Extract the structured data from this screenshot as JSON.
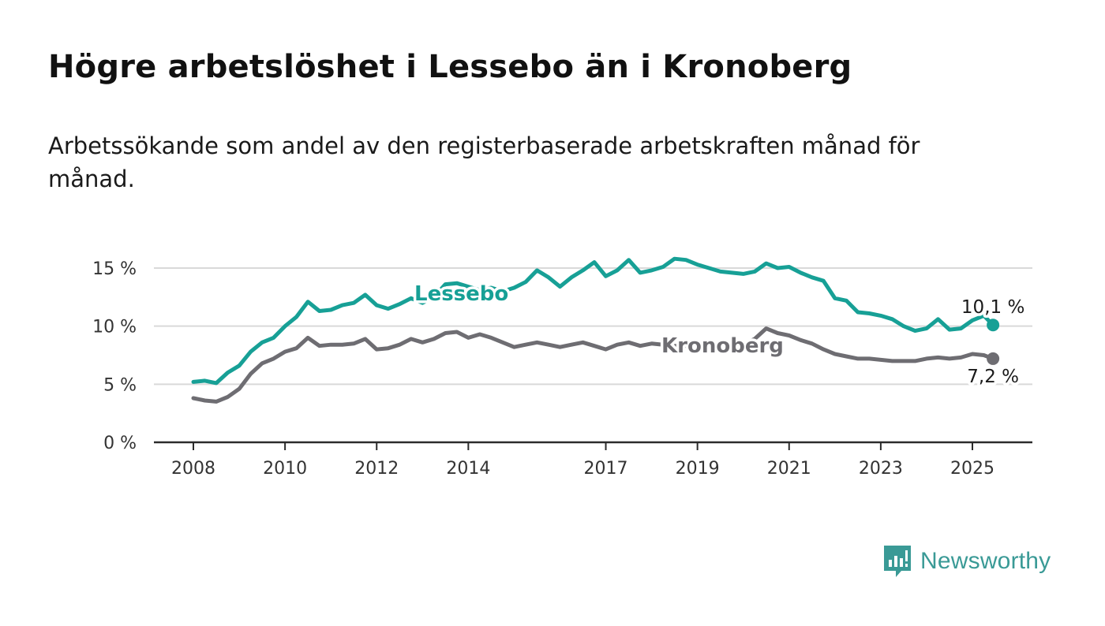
{
  "title": "Högre arbetslöshet i Lessebo än i Kronoberg",
  "subtitle": "Arbetssökande som andel av den registerbaserade arbetskraften månad för månad.",
  "brand": {
    "name": "Newsworthy",
    "icon": "newsworthy-logo-icon",
    "color": "#3a9a96"
  },
  "chart_data": {
    "type": "line",
    "xlim": [
      2007.8,
      2026.4
    ],
    "ylim": [
      0,
      15
    ],
    "y_ticks": [
      0,
      5,
      10,
      15
    ],
    "y_tick_labels": [
      "0 %",
      "5 %",
      "10 %",
      "15 %"
    ],
    "x_ticks": [
      2008,
      2010,
      2012,
      2014,
      2017,
      2019,
      2021,
      2023,
      2025
    ],
    "x_tick_labels": [
      "2008",
      "2010",
      "2012",
      "2014",
      "2017",
      "2019",
      "2021",
      "2023",
      "2025"
    ],
    "grid": true,
    "series": [
      {
        "name": "Lessebo",
        "color": "#17a096",
        "end_label": "10,1 %",
        "points": [
          [
            2008.0,
            5.2
          ],
          [
            2008.25,
            5.3
          ],
          [
            2008.5,
            5.1
          ],
          [
            2008.75,
            6.0
          ],
          [
            2009.0,
            6.6
          ],
          [
            2009.25,
            7.8
          ],
          [
            2009.5,
            8.6
          ],
          [
            2009.75,
            9.0
          ],
          [
            2010.0,
            10.0
          ],
          [
            2010.25,
            10.8
          ],
          [
            2010.5,
            12.1
          ],
          [
            2010.75,
            11.3
          ],
          [
            2011.0,
            11.4
          ],
          [
            2011.25,
            11.8
          ],
          [
            2011.5,
            12.0
          ],
          [
            2011.75,
            12.7
          ],
          [
            2012.0,
            11.8
          ],
          [
            2012.25,
            11.5
          ],
          [
            2012.5,
            11.9
          ],
          [
            2012.75,
            12.4
          ],
          [
            2013.0,
            12.0
          ],
          [
            2013.25,
            12.5
          ],
          [
            2013.5,
            13.6
          ],
          [
            2013.75,
            13.7
          ],
          [
            2014.0,
            13.4
          ],
          [
            2014.25,
            13.1
          ],
          [
            2014.5,
            13.3
          ],
          [
            2014.75,
            13.0
          ],
          [
            2015.0,
            13.3
          ],
          [
            2015.25,
            13.8
          ],
          [
            2015.5,
            14.8
          ],
          [
            2015.75,
            14.2
          ],
          [
            2016.0,
            13.4
          ],
          [
            2016.25,
            14.2
          ],
          [
            2016.5,
            14.8
          ],
          [
            2016.75,
            15.5
          ],
          [
            2017.0,
            14.3
          ],
          [
            2017.25,
            14.8
          ],
          [
            2017.5,
            15.7
          ],
          [
            2017.75,
            14.6
          ],
          [
            2018.0,
            14.8
          ],
          [
            2018.25,
            15.1
          ],
          [
            2018.5,
            15.8
          ],
          [
            2018.75,
            15.7
          ],
          [
            2019.0,
            15.3
          ],
          [
            2019.25,
            15.0
          ],
          [
            2019.5,
            14.7
          ],
          [
            2019.75,
            14.6
          ],
          [
            2020.0,
            14.5
          ],
          [
            2020.25,
            14.7
          ],
          [
            2020.5,
            15.4
          ],
          [
            2020.75,
            15.0
          ],
          [
            2021.0,
            15.1
          ],
          [
            2021.25,
            14.6
          ],
          [
            2021.5,
            14.2
          ],
          [
            2021.75,
            13.9
          ],
          [
            2022.0,
            12.4
          ],
          [
            2022.25,
            12.2
          ],
          [
            2022.5,
            11.2
          ],
          [
            2022.75,
            11.1
          ],
          [
            2023.0,
            10.9
          ],
          [
            2023.25,
            10.6
          ],
          [
            2023.5,
            10.0
          ],
          [
            2023.75,
            9.6
          ],
          [
            2024.0,
            9.8
          ],
          [
            2024.25,
            10.6
          ],
          [
            2024.5,
            9.7
          ],
          [
            2024.75,
            9.8
          ],
          [
            2025.0,
            10.5
          ],
          [
            2025.25,
            10.9
          ],
          [
            2025.45,
            10.1
          ]
        ]
      },
      {
        "name": "Kronoberg",
        "color": "#6e6d72",
        "end_label": "7,2 %",
        "points": [
          [
            2008.0,
            3.8
          ],
          [
            2008.25,
            3.6
          ],
          [
            2008.5,
            3.5
          ],
          [
            2008.75,
            3.9
          ],
          [
            2009.0,
            4.6
          ],
          [
            2009.25,
            5.9
          ],
          [
            2009.5,
            6.8
          ],
          [
            2009.75,
            7.2
          ],
          [
            2010.0,
            7.8
          ],
          [
            2010.25,
            8.1
          ],
          [
            2010.5,
            9.0
          ],
          [
            2010.75,
            8.3
          ],
          [
            2011.0,
            8.4
          ],
          [
            2011.25,
            8.4
          ],
          [
            2011.5,
            8.5
          ],
          [
            2011.75,
            8.9
          ],
          [
            2012.0,
            8.0
          ],
          [
            2012.25,
            8.1
          ],
          [
            2012.5,
            8.4
          ],
          [
            2012.75,
            8.9
          ],
          [
            2013.0,
            8.6
          ],
          [
            2013.25,
            8.9
          ],
          [
            2013.5,
            9.4
          ],
          [
            2013.75,
            9.5
          ],
          [
            2014.0,
            9.0
          ],
          [
            2014.25,
            9.3
          ],
          [
            2014.5,
            9.0
          ],
          [
            2014.75,
            8.6
          ],
          [
            2015.0,
            8.2
          ],
          [
            2015.25,
            8.4
          ],
          [
            2015.5,
            8.6
          ],
          [
            2015.75,
            8.4
          ],
          [
            2016.0,
            8.2
          ],
          [
            2016.25,
            8.4
          ],
          [
            2016.5,
            8.6
          ],
          [
            2016.75,
            8.3
          ],
          [
            2017.0,
            8.0
          ],
          [
            2017.25,
            8.4
          ],
          [
            2017.5,
            8.6
          ],
          [
            2017.75,
            8.3
          ],
          [
            2018.0,
            8.5
          ],
          [
            2018.25,
            8.4
          ],
          [
            2018.5,
            8.3
          ],
          [
            2018.75,
            8.3
          ],
          [
            2019.0,
            8.3
          ],
          [
            2019.25,
            8.4
          ],
          [
            2019.5,
            8.5
          ],
          [
            2019.75,
            8.4
          ],
          [
            2020.0,
            8.4
          ],
          [
            2020.25,
            8.9
          ],
          [
            2020.5,
            9.8
          ],
          [
            2020.75,
            9.4
          ],
          [
            2021.0,
            9.2
          ],
          [
            2021.25,
            8.8
          ],
          [
            2021.5,
            8.5
          ],
          [
            2021.75,
            8.0
          ],
          [
            2022.0,
            7.6
          ],
          [
            2022.25,
            7.4
          ],
          [
            2022.5,
            7.2
          ],
          [
            2022.75,
            7.2
          ],
          [
            2023.0,
            7.1
          ],
          [
            2023.25,
            7.0
          ],
          [
            2023.5,
            7.0
          ],
          [
            2023.75,
            7.0
          ],
          [
            2024.0,
            7.2
          ],
          [
            2024.25,
            7.3
          ],
          [
            2024.5,
            7.2
          ],
          [
            2024.75,
            7.3
          ],
          [
            2025.0,
            7.6
          ],
          [
            2025.25,
            7.5
          ],
          [
            2025.45,
            7.2
          ]
        ]
      }
    ]
  }
}
